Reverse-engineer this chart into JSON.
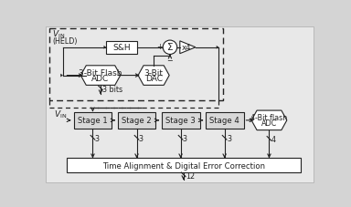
{
  "bg_color": "#d4d4d4",
  "box_fc": "#ffffff",
  "stage_fc": "#d0d0d0",
  "lc": "#222222",
  "bottom_bar_text": "Time Alignment & Digital Error Correction",
  "stage_names": [
    "Stage 1",
    "Stage 2",
    "Stage 3",
    "Stage 4"
  ],
  "stage_bits": [
    "3",
    "3",
    "3",
    "3"
  ],
  "adc4_bits": "4",
  "output_bits": "12",
  "fs_main": 6.5,
  "fs_small": 5.8
}
